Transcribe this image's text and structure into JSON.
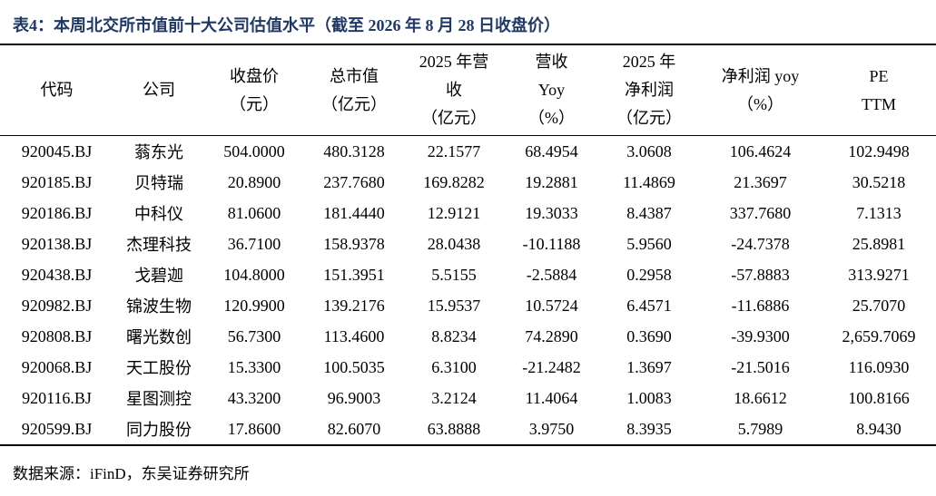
{
  "title": "表4：本周北交所市值前十大公司估值水平（截至 2026 年 8 月 28 日收盘价）",
  "table": {
    "header": [
      [
        "代码"
      ],
      [
        "公司"
      ],
      [
        "收盘价",
        "（元）"
      ],
      [
        "总市值",
        "（亿元）"
      ],
      [
        "2025 年营",
        "收",
        "（亿元）"
      ],
      [
        "营收",
        "Yoy",
        "（%）"
      ],
      [
        "2025 年",
        "净利润",
        "（亿元）"
      ],
      [
        "净利润 yoy",
        "（%）"
      ],
      [
        "PE",
        "TTM"
      ]
    ],
    "rows": [
      [
        "920045.BJ",
        "蓊东光",
        "504.0000",
        "480.3128",
        "22.1577",
        "68.4954",
        "3.0608",
        "106.4624",
        "102.9498"
      ],
      [
        "920185.BJ",
        "贝特瑞",
        "20.8900",
        "237.7680",
        "169.8282",
        "19.2881",
        "11.4869",
        "21.3697",
        "30.5218"
      ],
      [
        "920186.BJ",
        "中科仪",
        "81.0600",
        "181.4440",
        "12.9121",
        "19.3033",
        "8.4387",
        "337.7680",
        "7.1313"
      ],
      [
        "920138.BJ",
        "杰理科技",
        "36.7100",
        "158.9378",
        "28.0438",
        "-10.1188",
        "5.9560",
        "-24.7378",
        "25.8981"
      ],
      [
        "920438.BJ",
        "戈碧迦",
        "104.8000",
        "151.3951",
        "5.5155",
        "-2.5884",
        "0.2958",
        "-57.8883",
        "313.9271"
      ],
      [
        "920982.BJ",
        "锦波生物",
        "120.9900",
        "139.2176",
        "15.9537",
        "10.5724",
        "6.4571",
        "-11.6886",
        "25.7070"
      ],
      [
        "920808.BJ",
        "曙光数创",
        "56.7300",
        "113.4600",
        "8.8234",
        "74.2890",
        "0.3690",
        "-39.9300",
        "2,659.7069"
      ],
      [
        "920068.BJ",
        "天工股份",
        "15.3300",
        "100.5035",
        "6.3100",
        "-21.2482",
        "1.3697",
        "-21.5016",
        "116.0930"
      ],
      [
        "920116.BJ",
        "星图测控",
        "43.3200",
        "96.9003",
        "3.2124",
        "11.4064",
        "1.0083",
        "18.6612",
        "100.8166"
      ],
      [
        "920599.BJ",
        "同力股份",
        "17.8600",
        "82.6070",
        "63.8888",
        "3.9750",
        "8.3935",
        "5.7989",
        "8.9430"
      ]
    ]
  },
  "source": "数据来源：iFinD，东吴证券研究所"
}
